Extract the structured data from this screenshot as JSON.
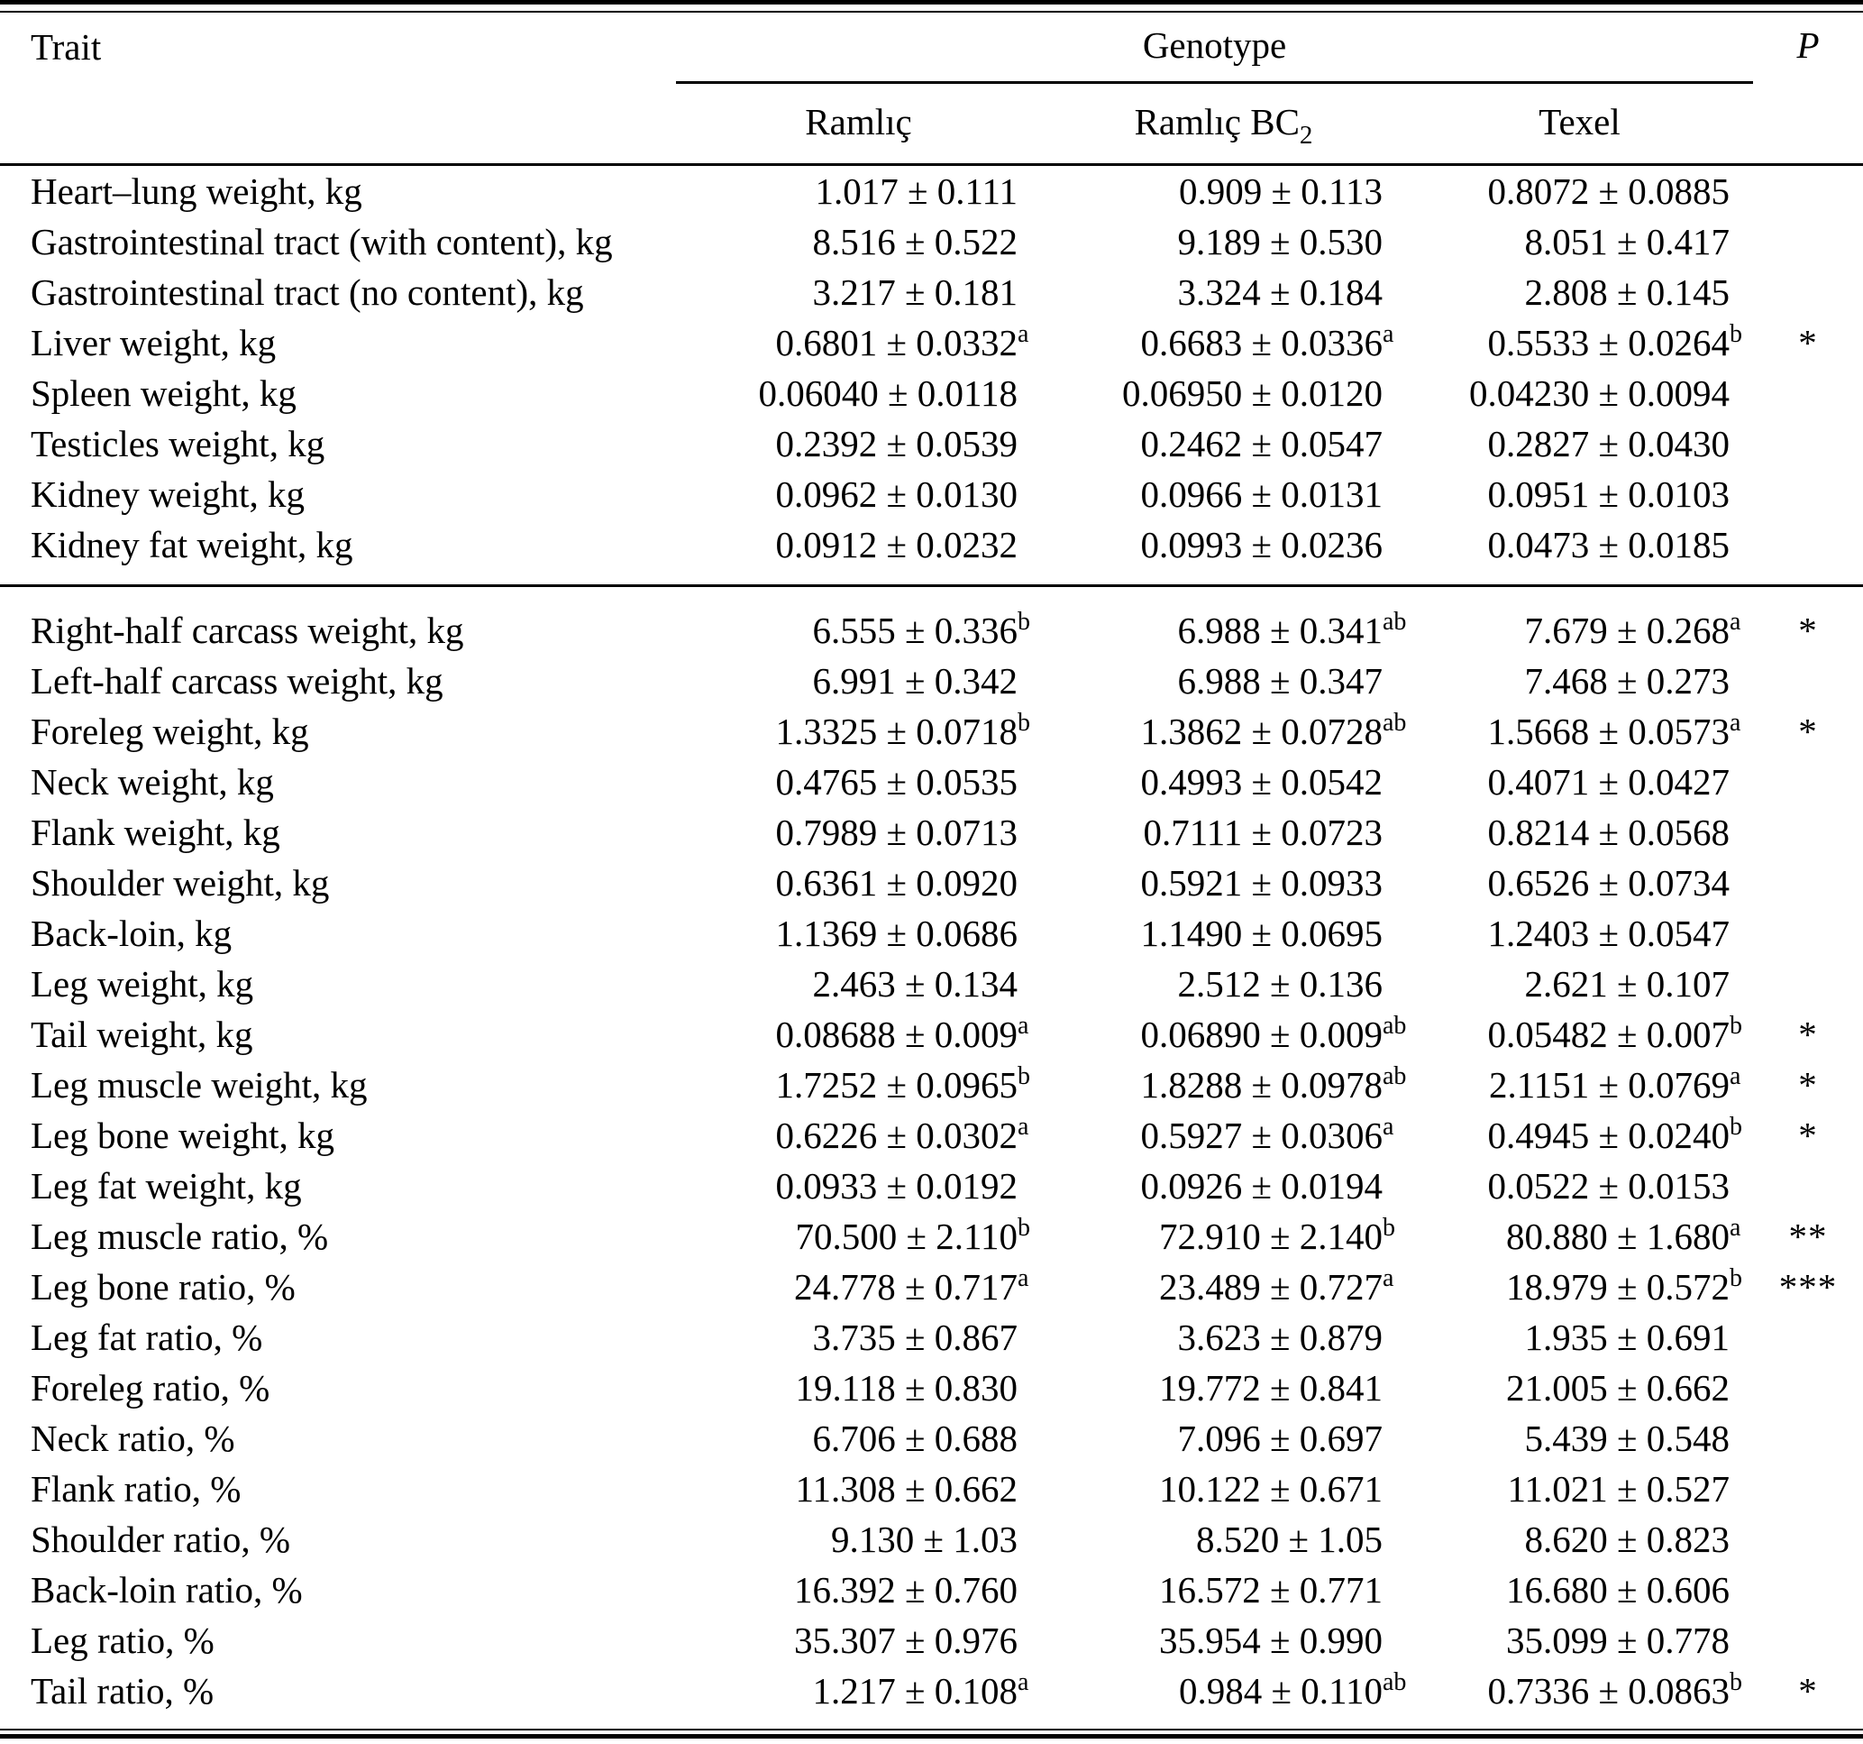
{
  "header": {
    "trait_label": "Trait",
    "genotype_label": "Genotype",
    "p_label": "P",
    "genotype_columns": [
      {
        "label": "Ramlıç",
        "sub": ""
      },
      {
        "label": "Ramlıç BC",
        "sub": "2"
      },
      {
        "label": "Texel",
        "sub": ""
      }
    ]
  },
  "sections": [
    {
      "rows": [
        {
          "trait": "Heart–lung weight, kg",
          "cells": [
            {
              "value": "1.017 ± 0.111",
              "sup": ""
            },
            {
              "value": "0.909 ± 0.113",
              "sup": ""
            },
            {
              "value": "0.8072 ± 0.0885",
              "sup": ""
            }
          ],
          "p": ""
        },
        {
          "trait": "Gastrointestinal tract (with content), kg",
          "cells": [
            {
              "value": "8.516 ± 0.522",
              "sup": ""
            },
            {
              "value": "9.189 ± 0.530",
              "sup": ""
            },
            {
              "value": "8.051 ± 0.417",
              "sup": ""
            }
          ],
          "p": ""
        },
        {
          "trait": "Gastrointestinal tract (no content), kg",
          "cells": [
            {
              "value": "3.217 ± 0.181",
              "sup": ""
            },
            {
              "value": "3.324 ± 0.184",
              "sup": ""
            },
            {
              "value": "2.808 ± 0.145",
              "sup": ""
            }
          ],
          "p": ""
        },
        {
          "trait": "Liver weight, kg",
          "cells": [
            {
              "value": "0.6801 ± 0.0332",
              "sup": "a"
            },
            {
              "value": "0.6683 ± 0.0336",
              "sup": "a"
            },
            {
              "value": "0.5533 ± 0.0264",
              "sup": "b"
            }
          ],
          "p": "*"
        },
        {
          "trait": "Spleen weight, kg",
          "cells": [
            {
              "value": "0.06040 ± 0.0118",
              "sup": ""
            },
            {
              "value": "0.06950 ± 0.0120",
              "sup": ""
            },
            {
              "value": "0.04230 ± 0.0094",
              "sup": ""
            }
          ],
          "p": ""
        },
        {
          "trait": "Testicles weight, kg",
          "cells": [
            {
              "value": "0.2392 ± 0.0539",
              "sup": ""
            },
            {
              "value": "0.2462 ± 0.0547",
              "sup": ""
            },
            {
              "value": "0.2827 ± 0.0430",
              "sup": ""
            }
          ],
          "p": ""
        },
        {
          "trait": "Kidney weight, kg",
          "cells": [
            {
              "value": "0.0962 ± 0.0130",
              "sup": ""
            },
            {
              "value": "0.0966 ± 0.0131",
              "sup": ""
            },
            {
              "value": "0.0951 ± 0.0103",
              "sup": ""
            }
          ],
          "p": ""
        },
        {
          "trait": "Kidney fat weight, kg",
          "cells": [
            {
              "value": "0.0912 ± 0.0232",
              "sup": ""
            },
            {
              "value": "0.0993 ± 0.0236",
              "sup": ""
            },
            {
              "value": "0.0473 ± 0.0185",
              "sup": ""
            }
          ],
          "p": ""
        }
      ]
    },
    {
      "rows": [
        {
          "trait": "Right-half carcass weight, kg",
          "cells": [
            {
              "value": "6.555 ± 0.336",
              "sup": "b"
            },
            {
              "value": "6.988 ± 0.341",
              "sup": "ab"
            },
            {
              "value": "7.679 ± 0.268",
              "sup": "a"
            }
          ],
          "p": "*"
        },
        {
          "trait": "Left-half carcass weight, kg",
          "cells": [
            {
              "value": "6.991 ± 0.342",
              "sup": ""
            },
            {
              "value": "6.988 ± 0.347",
              "sup": ""
            },
            {
              "value": "7.468 ± 0.273",
              "sup": ""
            }
          ],
          "p": ""
        },
        {
          "trait": "Foreleg weight, kg",
          "cells": [
            {
              "value": "1.3325 ± 0.0718",
              "sup": "b"
            },
            {
              "value": "1.3862 ± 0.0728",
              "sup": "ab"
            },
            {
              "value": "1.5668 ± 0.0573",
              "sup": "a"
            }
          ],
          "p": "*"
        },
        {
          "trait": "Neck weight, kg",
          "cells": [
            {
              "value": "0.4765 ± 0.0535",
              "sup": ""
            },
            {
              "value": "0.4993 ± 0.0542",
              "sup": ""
            },
            {
              "value": "0.4071 ± 0.0427",
              "sup": ""
            }
          ],
          "p": ""
        },
        {
          "trait": "Flank weight, kg",
          "cells": [
            {
              "value": "0.7989 ± 0.0713",
              "sup": ""
            },
            {
              "value": "0.7111 ± 0.0723",
              "sup": ""
            },
            {
              "value": "0.8214 ± 0.0568",
              "sup": ""
            }
          ],
          "p": ""
        },
        {
          "trait": "Shoulder weight, kg",
          "cells": [
            {
              "value": "0.6361 ± 0.0920",
              "sup": ""
            },
            {
              "value": "0.5921 ± 0.0933",
              "sup": ""
            },
            {
              "value": "0.6526 ± 0.0734",
              "sup": ""
            }
          ],
          "p": ""
        },
        {
          "trait": "Back-loin, kg",
          "cells": [
            {
              "value": "1.1369 ± 0.0686",
              "sup": ""
            },
            {
              "value": "1.1490 ± 0.0695",
              "sup": ""
            },
            {
              "value": "1.2403 ± 0.0547",
              "sup": ""
            }
          ],
          "p": ""
        },
        {
          "trait": "Leg weight, kg",
          "cells": [
            {
              "value": "2.463 ± 0.134",
              "sup": ""
            },
            {
              "value": "2.512 ± 0.136",
              "sup": ""
            },
            {
              "value": "2.621 ± 0.107",
              "sup": ""
            }
          ],
          "p": ""
        },
        {
          "trait": "Tail weight, kg",
          "cells": [
            {
              "value": "0.08688 ± 0.009",
              "sup": "a"
            },
            {
              "value": "0.06890 ± 0.009",
              "sup": "ab"
            },
            {
              "value": "0.05482 ± 0.007",
              "sup": "b"
            }
          ],
          "p": "*"
        },
        {
          "trait": "Leg muscle weight, kg",
          "cells": [
            {
              "value": "1.7252 ± 0.0965",
              "sup": "b"
            },
            {
              "value": "1.8288 ± 0.0978",
              "sup": "ab"
            },
            {
              "value": "2.1151 ± 0.0769",
              "sup": "a"
            }
          ],
          "p": "*"
        },
        {
          "trait": "Leg bone weight, kg",
          "cells": [
            {
              "value": "0.6226 ± 0.0302",
              "sup": "a"
            },
            {
              "value": "0.5927 ± 0.0306",
              "sup": "a"
            },
            {
              "value": "0.4945 ± 0.0240",
              "sup": "b"
            }
          ],
          "p": "*"
        },
        {
          "trait": "Leg fat weight, kg",
          "cells": [
            {
              "value": "0.0933 ± 0.0192",
              "sup": ""
            },
            {
              "value": "0.0926 ± 0.0194",
              "sup": ""
            },
            {
              "value": "0.0522 ± 0.0153",
              "sup": ""
            }
          ],
          "p": ""
        },
        {
          "trait": "Leg muscle ratio, %",
          "cells": [
            {
              "value": "70.500 ± 2.110",
              "sup": "b"
            },
            {
              "value": "72.910 ± 2.140",
              "sup": "b"
            },
            {
              "value": "80.880 ± 1.680",
              "sup": "a"
            }
          ],
          "p": "**"
        },
        {
          "trait": "Leg bone ratio, %",
          "cells": [
            {
              "value": "24.778 ± 0.717",
              "sup": "a"
            },
            {
              "value": "23.489 ± 0.727",
              "sup": "a"
            },
            {
              "value": "18.979 ± 0.572",
              "sup": "b"
            }
          ],
          "p": "***"
        },
        {
          "trait": "Leg fat ratio, %",
          "cells": [
            {
              "value": "3.735 ± 0.867",
              "sup": ""
            },
            {
              "value": "3.623 ± 0.879",
              "sup": ""
            },
            {
              "value": "1.935 ± 0.691",
              "sup": ""
            }
          ],
          "p": ""
        },
        {
          "trait": "Foreleg ratio, %",
          "cells": [
            {
              "value": "19.118 ± 0.830",
              "sup": ""
            },
            {
              "value": "19.772 ± 0.841",
              "sup": ""
            },
            {
              "value": "21.005 ± 0.662",
              "sup": ""
            }
          ],
          "p": ""
        },
        {
          "trait": "Neck ratio, %",
          "cells": [
            {
              "value": "6.706 ± 0.688",
              "sup": ""
            },
            {
              "value": "7.096 ± 0.697",
              "sup": ""
            },
            {
              "value": "5.439 ± 0.548",
              "sup": ""
            }
          ],
          "p": ""
        },
        {
          "trait": "Flank ratio, %",
          "cells": [
            {
              "value": "11.308 ± 0.662",
              "sup": ""
            },
            {
              "value": "10.122 ± 0.671",
              "sup": ""
            },
            {
              "value": "11.021 ± 0.527",
              "sup": ""
            }
          ],
          "p": ""
        },
        {
          "trait": "Shoulder ratio, %",
          "cells": [
            {
              "value": "9.130 ± 1.03",
              "sup": ""
            },
            {
              "value": "8.520 ± 1.05",
              "sup": ""
            },
            {
              "value": "8.620 ± 0.823",
              "sup": ""
            }
          ],
          "p": ""
        },
        {
          "trait": "Back-loin ratio, %",
          "cells": [
            {
              "value": "16.392 ± 0.760",
              "sup": ""
            },
            {
              "value": "16.572 ± 0.771",
              "sup": ""
            },
            {
              "value": "16.680 ± 0.606",
              "sup": ""
            }
          ],
          "p": ""
        },
        {
          "trait": "Leg ratio, %",
          "cells": [
            {
              "value": "35.307 ± 0.976",
              "sup": ""
            },
            {
              "value": "35.954 ± 0.990",
              "sup": ""
            },
            {
              "value": "35.099 ± 0.778",
              "sup": ""
            }
          ],
          "p": ""
        },
        {
          "trait": "Tail ratio, %",
          "cells": [
            {
              "value": "1.217 ± 0.108",
              "sup": "a"
            },
            {
              "value": "0.984 ± 0.110",
              "sup": "ab"
            },
            {
              "value": "0.7336 ± 0.0863",
              "sup": "b"
            }
          ],
          "p": "*"
        }
      ]
    }
  ]
}
